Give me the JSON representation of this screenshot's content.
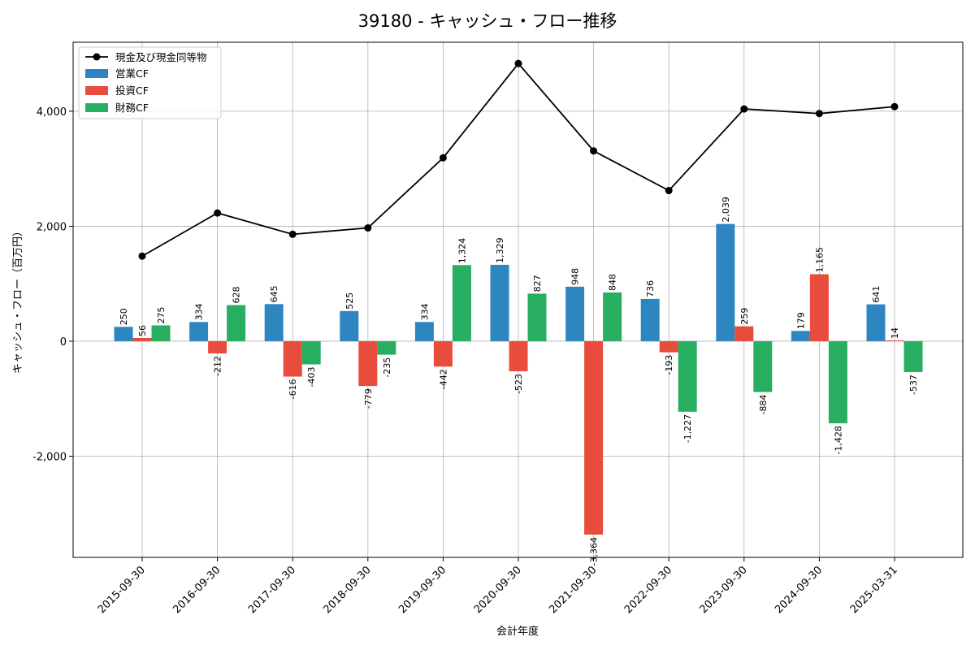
{
  "chart_data": {
    "type": "bar",
    "title": "39180 - キャッシュ・フロー推移",
    "xlabel": "会計年度",
    "ylabel": "キャッシュ・フロー（百万円）",
    "ylim": [
      -3760,
      5200
    ],
    "yticks": [
      -2000,
      0,
      2000,
      4000
    ],
    "ytick_labels": [
      "-2,000",
      "0",
      "2,000",
      "4,000"
    ],
    "grid": true,
    "legend_position": "top-left",
    "categories": [
      "2015-09-30",
      "2016-09-30",
      "2017-09-30",
      "2018-09-30",
      "2019-09-30",
      "2020-09-30",
      "2021-09-30",
      "2022-09-30",
      "2023-09-30",
      "2024-09-30",
      "2025-03-31"
    ],
    "line": {
      "name": "現金及び現金同等物",
      "color": "#000000",
      "values": [
        1480,
        2230,
        1860,
        1970,
        3190,
        4830,
        3310,
        2620,
        4040,
        3960,
        4080
      ]
    },
    "series": [
      {
        "name": "営業CF",
        "color": "#2e86c1",
        "values": [
          250,
          334,
          645,
          525,
          334,
          1329,
          948,
          736,
          2039,
          179,
          641
        ],
        "labels": [
          "250",
          "334",
          "645",
          "525",
          "334",
          "1,329",
          "948",
          "736",
          "2,039",
          "179",
          "641"
        ]
      },
      {
        "name": "投資CF",
        "color": "#e74c3c",
        "values": [
          56,
          -212,
          -616,
          -779,
          -442,
          -523,
          -3364,
          -193,
          259,
          1165,
          14
        ],
        "labels": [
          "56",
          "-212",
          "-616",
          "-779",
          "-442",
          "-523",
          "-3,364",
          "-193",
          "259",
          "1,165",
          "14"
        ]
      },
      {
        "name": "財務CF",
        "color": "#27ae60",
        "values": [
          275,
          628,
          -403,
          -235,
          1324,
          827,
          848,
          -1227,
          -884,
          -1428,
          -537
        ],
        "labels": [
          "275",
          "628",
          "-403",
          "-235",
          "1,324",
          "827",
          "848",
          "-1,227",
          "-884",
          "-1,428",
          "-537"
        ]
      }
    ]
  }
}
